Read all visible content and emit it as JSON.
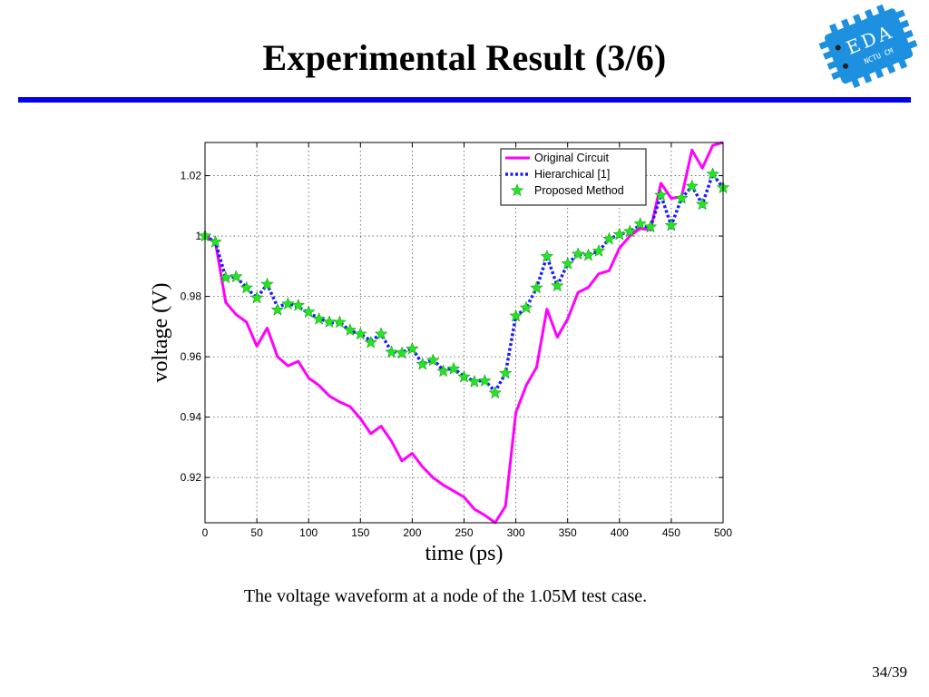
{
  "slide": {
    "title": "Experimental Result (3/6)",
    "caption": "The voltage waveform at a node of the 1.05M test case.",
    "page_number": "34/39",
    "logo_text": "EDA",
    "logo_subtext": "NCTU CM"
  },
  "colors": {
    "title_rule": "#0000e6",
    "original": "#ff00ff",
    "hierarchical": "#1a1aff",
    "proposed": "#22e622",
    "logo": "#1e90e0"
  },
  "chart_data": {
    "type": "line",
    "title": "",
    "xlabel": "time (ps)",
    "ylabel": "voltage (V)",
    "xlim": [
      0,
      500
    ],
    "ylim": [
      0.905,
      1.031
    ],
    "xticks": [
      0,
      50,
      100,
      150,
      200,
      250,
      300,
      350,
      400,
      450,
      500
    ],
    "yticks": [
      0.92,
      0.94,
      0.96,
      0.98,
      1,
      1.02
    ],
    "ytick_labels": [
      "0.92",
      "0.94",
      "0.96",
      "0.98",
      "1",
      "1.02"
    ],
    "grid": true,
    "legend_position": "top-right",
    "series": [
      {
        "name": "Original Circuit",
        "style": "solid",
        "x": [
          0,
          10,
          20,
          30,
          40,
          50,
          60,
          70,
          80,
          90,
          100,
          110,
          120,
          130,
          140,
          150,
          160,
          170,
          180,
          190,
          200,
          210,
          220,
          230,
          240,
          250,
          260,
          270,
          280,
          290,
          300,
          310,
          320,
          330,
          340,
          350,
          360,
          370,
          380,
          390,
          400,
          410,
          420,
          430,
          440,
          450,
          460,
          470,
          480,
          490,
          500
        ],
        "y": [
          1.0,
          0.998,
          0.978,
          0.974,
          0.9715,
          0.9635,
          0.9695,
          0.96,
          0.957,
          0.9585,
          0.953,
          0.9505,
          0.947,
          0.945,
          0.9435,
          0.9395,
          0.9345,
          0.937,
          0.932,
          0.9255,
          0.928,
          0.9235,
          0.92,
          0.9175,
          0.9155,
          0.9135,
          0.9095,
          0.9075,
          0.905,
          0.9105,
          0.9415,
          0.9505,
          0.9565,
          0.9758,
          0.9665,
          0.9725,
          0.9813,
          0.983,
          0.9875,
          0.9885,
          0.996,
          1.0,
          1.0025,
          1.002,
          1.0175,
          1.0125,
          1.013,
          1.0285,
          1.0225,
          1.03,
          1.031
        ]
      },
      {
        "name": "Hierarchical [1]",
        "style": "dotted",
        "x": [
          0,
          10,
          20,
          30,
          40,
          50,
          60,
          70,
          80,
          90,
          100,
          110,
          120,
          130,
          140,
          150,
          160,
          170,
          180,
          190,
          200,
          210,
          220,
          230,
          240,
          250,
          260,
          270,
          280,
          290,
          300,
          310,
          320,
          330,
          340,
          350,
          360,
          370,
          380,
          390,
          400,
          410,
          420,
          430,
          440,
          450,
          460,
          470,
          480,
          490,
          500
        ],
        "y": [
          1.0,
          0.998,
          0.9862,
          0.9865,
          0.9828,
          0.9795,
          0.984,
          0.9765,
          0.9777,
          0.9765,
          0.9745,
          0.9728,
          0.9713,
          0.9714,
          0.9686,
          0.9675,
          0.9653,
          0.9675,
          0.9617,
          0.9615,
          0.9628,
          0.9575,
          0.9592,
          0.9555,
          0.9562,
          0.9535,
          0.9519,
          0.9521,
          0.9485,
          0.9545,
          0.9735,
          0.9762,
          0.9828,
          0.9932,
          0.9835,
          0.9908,
          0.994,
          0.9938,
          0.995,
          0.999,
          1.0005,
          1.0015,
          1.0035,
          1.003,
          1.0135,
          1.0035,
          1.0125,
          1.0165,
          1.0105,
          1.0205,
          1.016
        ]
      },
      {
        "name": "Proposed Method",
        "style": "star-markers",
        "x": [
          0,
          10,
          20,
          30,
          40,
          50,
          60,
          70,
          80,
          90,
          100,
          110,
          120,
          130,
          140,
          150,
          160,
          170,
          180,
          190,
          200,
          210,
          220,
          230,
          240,
          250,
          260,
          270,
          280,
          290,
          300,
          310,
          320,
          330,
          340,
          350,
          360,
          370,
          380,
          390,
          400,
          410,
          420,
          430,
          440,
          450,
          460,
          470,
          480,
          490,
          500
        ],
        "y": [
          1.0,
          0.998,
          0.9862,
          0.9865,
          0.9828,
          0.9795,
          0.984,
          0.9755,
          0.9775,
          0.977,
          0.9748,
          0.9725,
          0.9715,
          0.9714,
          0.9688,
          0.9675,
          0.9647,
          0.9675,
          0.9615,
          0.9612,
          0.9626,
          0.9575,
          0.9588,
          0.9552,
          0.956,
          0.9533,
          0.9517,
          0.952,
          0.948,
          0.9545,
          0.9735,
          0.9762,
          0.9828,
          0.9932,
          0.9835,
          0.9908,
          0.994,
          0.9936,
          0.995,
          0.999,
          1.0005,
          1.0015,
          1.004,
          1.003,
          1.0135,
          1.0035,
          1.0125,
          1.0165,
          1.0105,
          1.0205,
          1.016
        ]
      }
    ]
  }
}
